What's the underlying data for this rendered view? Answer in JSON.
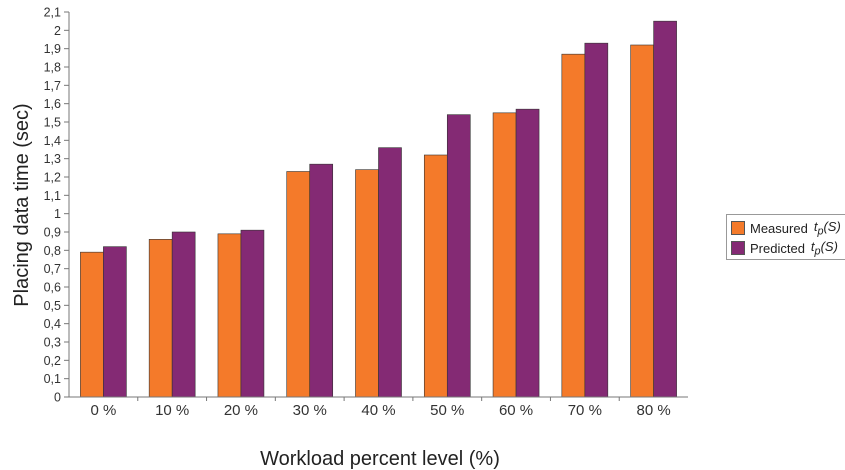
{
  "chart_data": {
    "type": "bar",
    "xlabel": "Workload percent level (%)",
    "ylabel": "Placing data time (sec)",
    "categories": [
      "0 %",
      "10 %",
      "20 %",
      "30 %",
      "40 %",
      "50 %",
      "60 %",
      "70 %",
      "80 %"
    ],
    "series": [
      {
        "name": "Measured",
        "symbol": "tp(S)",
        "color": "#f47a2a",
        "values": [
          0.79,
          0.86,
          0.89,
          1.23,
          1.24,
          1.32,
          1.55,
          1.87,
          1.92
        ]
      },
      {
        "name": "Predicted",
        "symbol": "tp(S)",
        "color": "#842a74",
        "values": [
          0.82,
          0.9,
          0.91,
          1.27,
          1.36,
          1.54,
          1.57,
          1.93,
          2.05
        ]
      }
    ],
    "ylim": [
      0,
      2.1
    ],
    "yticks": [
      "0",
      "0,1",
      "0,2",
      "0,3",
      "0,4",
      "0,5",
      "0,6",
      "0,7",
      "0,8",
      "0,9",
      "1",
      "1,1",
      "1,2",
      "1,3",
      "1,4",
      "1,5",
      "1,6",
      "1,7",
      "1,8",
      "1,9",
      "2",
      "2,1"
    ],
    "grid": false,
    "legend_position": "right"
  }
}
